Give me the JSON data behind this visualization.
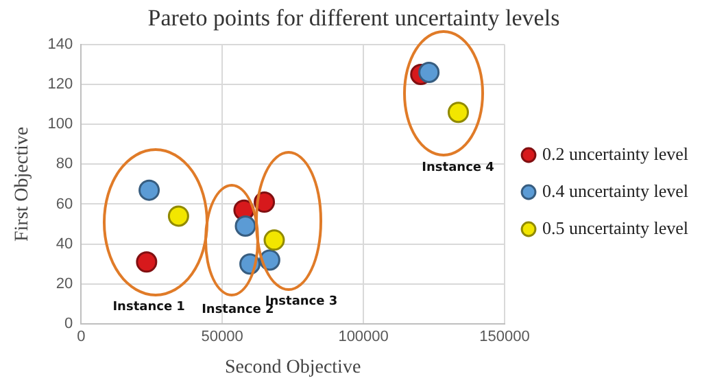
{
  "chart_data": {
    "type": "scatter",
    "title": "Pareto points for different uncertainty levels",
    "xlabel": "Second Objective",
    "ylabel": "First Objective",
    "xlim": [
      0,
      150000
    ],
    "xticks": [
      0,
      50000,
      100000,
      150000
    ],
    "ylim": [
      0,
      140
    ],
    "yticks": [
      0,
      20,
      40,
      60,
      80,
      100,
      120,
      140
    ],
    "grid": true,
    "legend": "right",
    "marker": "circle",
    "series": [
      {
        "name": "0.2 uncertainty level",
        "color": "#d7191c",
        "x": [
          23200,
          57700,
          64900,
          120300
        ],
        "values": [
          31,
          57,
          61,
          125
        ]
      },
      {
        "name": "0.4 uncertainty level",
        "color": "#5b9bd5",
        "x": [
          24100,
          58200,
          59800,
          66800,
          123200
        ],
        "values": [
          67,
          49,
          30,
          32,
          126
        ]
      },
      {
        "name": "0.5 uncertainty level",
        "color": "#f2e600",
        "x": [
          34500,
          68400,
          133600
        ],
        "values": [
          54,
          42,
          106
        ]
      }
    ],
    "annotations": [
      "Instance 1",
      "Instance 2",
      "Instance 3",
      "Instance 4"
    ]
  }
}
